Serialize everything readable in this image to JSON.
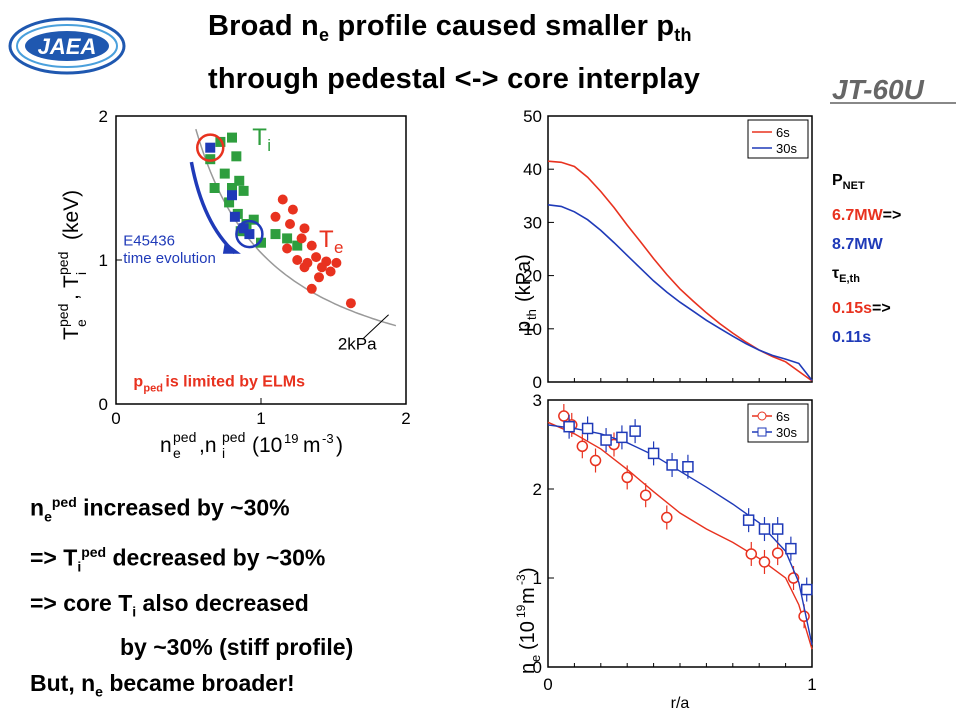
{
  "title": {
    "line1_a": "Broad n",
    "line1_sub1": "e",
    "line1_b": " profile caused smaller p",
    "line1_sub2": "th",
    "line2": "through pedestal <-> core interplay"
  },
  "logo": {
    "text": "JAEA"
  },
  "device": "JT-60U",
  "side_panel": {
    "pnet_label": "P",
    "pnet_sub": "NET",
    "pnet_from": "6.7MW",
    "arrow": "=>",
    "pnet_to": "8.7MW",
    "tau_label": "τ",
    "tau_sub": "E,th",
    "tau_from": "0.15s",
    "tau_to": "0.11s"
  },
  "bullets": {
    "l1_a": "n",
    "l1_sub": "e",
    "l1_sup": "ped",
    "l1_b": " increased by ~30%",
    "l2_a": "=> T",
    "l2_sub": "i",
    "l2_sup": "ped",
    "l2_b": " decreased by ~30%",
    "l3_a": "=> core T",
    "l3_sub": "i",
    "l3_b": " also decreased",
    "l4": "by ~30% (stiff profile)",
    "l5_a": "But, n",
    "l5_sub": "e",
    "l5_b": " became broader!"
  },
  "colors": {
    "red": "#e8321f",
    "blue": "#1f3ab8",
    "green": "#2e9e3e",
    "gray": "#888888"
  },
  "chart_data": [
    {
      "type": "scatter",
      "xlabel": "n_e^ped, n_i^ped (10^19 m^-3)",
      "ylabel": "T_e^ped, T_i^ped (keV)",
      "xlim": [
        0,
        2
      ],
      "ylim": [
        0,
        2
      ],
      "x_ticks": [
        "0",
        "1",
        "2"
      ],
      "y_ticks": [
        "0",
        "1",
        "2"
      ],
      "labels": {
        "ti": "T",
        "ti_sub": "i",
        "te": "T",
        "te_sub": "e",
        "annot_line1": "E45436",
        "annot_line2": "time evolution",
        "isobar": "2kPa",
        "limit_a": "p",
        "limit_sub": "ped",
        "limit_b": " is limited by ELMs"
      },
      "series": [
        {
          "name": "Ti",
          "color": "#2e9e3e",
          "points": [
            [
              0.72,
              1.82
            ],
            [
              0.8,
              1.85
            ],
            [
              0.83,
              1.72
            ],
            [
              0.65,
              1.7
            ],
            [
              0.75,
              1.6
            ],
            [
              0.85,
              1.55
            ],
            [
              0.68,
              1.5
            ],
            [
              0.8,
              1.5
            ],
            [
              0.88,
              1.48
            ],
            [
              0.78,
              1.4
            ],
            [
              0.84,
              1.32
            ],
            [
              0.9,
              1.25
            ],
            [
              1.0,
              1.12
            ],
            [
              0.95,
              1.28
            ],
            [
              1.1,
              1.18
            ],
            [
              1.18,
              1.15
            ],
            [
              1.25,
              1.1
            ],
            [
              0.86,
              1.2
            ]
          ]
        },
        {
          "name": "Ti-blue",
          "color": "#1f3ab8",
          "points": [
            [
              0.65,
              1.78
            ],
            [
              0.8,
              1.45
            ],
            [
              0.82,
              1.3
            ],
            [
              0.88,
              1.22
            ],
            [
              0.92,
              1.18
            ]
          ]
        },
        {
          "name": "Te",
          "color": "#e8321f",
          "points": [
            [
              1.15,
              1.42
            ],
            [
              1.22,
              1.35
            ],
            [
              1.1,
              1.3
            ],
            [
              1.2,
              1.25
            ],
            [
              1.3,
              1.22
            ],
            [
              1.28,
              1.15
            ],
            [
              1.35,
              1.1
            ],
            [
              1.18,
              1.08
            ],
            [
              1.25,
              1.0
            ],
            [
              1.32,
              0.98
            ],
            [
              1.38,
              1.02
            ],
            [
              1.42,
              0.95
            ],
            [
              1.3,
              0.95
            ],
            [
              1.45,
              0.99
            ],
            [
              1.48,
              0.92
            ],
            [
              1.4,
              0.88
            ],
            [
              1.52,
              0.98
            ],
            [
              1.62,
              0.7
            ],
            [
              1.35,
              0.8
            ]
          ]
        }
      ],
      "isobar_kpa": 2,
      "highlight_circles": [
        {
          "x": 0.65,
          "y": 1.78,
          "color": "#e8321f"
        },
        {
          "x": 0.92,
          "y": 1.18,
          "color": "#1f3ab8"
        }
      ]
    },
    {
      "type": "line",
      "ylabel": "p_th (kPa)",
      "xlim": [
        0,
        1
      ],
      "ylim": [
        0,
        50
      ],
      "y_ticks": [
        "0",
        "10",
        "20",
        "30",
        "40",
        "50"
      ],
      "series": [
        {
          "name": "6s",
          "color": "#e8321f",
          "x": [
            0,
            0.05,
            0.1,
            0.15,
            0.2,
            0.25,
            0.3,
            0.35,
            0.4,
            0.45,
            0.5,
            0.55,
            0.6,
            0.65,
            0.7,
            0.75,
            0.8,
            0.85,
            0.9,
            0.95,
            1.0
          ],
          "values": [
            41.5,
            41.3,
            40.5,
            38.5,
            35.8,
            32.8,
            29.5,
            26.4,
            23.2,
            20.2,
            17.5,
            15.2,
            13.0,
            11.0,
            9.2,
            7.5,
            6.0,
            4.8,
            3.8,
            2.0,
            0.2
          ]
        },
        {
          "name": "30s",
          "color": "#1f3ab8",
          "x": [
            0,
            0.05,
            0.1,
            0.15,
            0.2,
            0.25,
            0.3,
            0.35,
            0.4,
            0.45,
            0.5,
            0.55,
            0.6,
            0.65,
            0.7,
            0.75,
            0.8,
            0.85,
            0.9,
            0.95,
            1.0
          ],
          "values": [
            33.3,
            33.0,
            32.0,
            30.5,
            28.5,
            26.2,
            23.8,
            21.4,
            19.0,
            16.9,
            15.0,
            13.3,
            11.6,
            10.1,
            8.6,
            7.2,
            6.0,
            5.0,
            4.3,
            3.5,
            0.3
          ]
        }
      ]
    },
    {
      "type": "line",
      "xlabel": "r/a",
      "ylabel": "n_e (10^19 m^-3)",
      "xlim": [
        0,
        1
      ],
      "ylim": [
        0,
        3
      ],
      "x_ticks": [
        "0",
        "1"
      ],
      "y_ticks": [
        "0",
        "1",
        "2",
        "3"
      ],
      "series": [
        {
          "name": "6s",
          "color": "#e8321f",
          "points": [
            [
              0.06,
              2.82
            ],
            [
              0.09,
              2.72
            ],
            [
              0.13,
              2.48
            ],
            [
              0.18,
              2.32
            ],
            [
              0.25,
              2.5
            ],
            [
              0.3,
              2.13
            ],
            [
              0.37,
              1.93
            ],
            [
              0.45,
              1.68
            ],
            [
              0.77,
              1.27
            ],
            [
              0.82,
              1.18
            ],
            [
              0.87,
              1.28
            ],
            [
              0.93,
              1.0
            ],
            [
              0.97,
              0.57
            ]
          ],
          "fit_x": [
            0,
            0.1,
            0.2,
            0.3,
            0.4,
            0.5,
            0.6,
            0.7,
            0.8,
            0.9,
            0.95,
            1.0
          ],
          "fit_y": [
            2.75,
            2.62,
            2.45,
            2.22,
            1.97,
            1.73,
            1.55,
            1.4,
            1.22,
            1.0,
            0.7,
            0.2
          ]
        },
        {
          "name": "30s",
          "color": "#1f3ab8",
          "points": [
            [
              0.08,
              2.7
            ],
            [
              0.15,
              2.68
            ],
            [
              0.22,
              2.55
            ],
            [
              0.28,
              2.58
            ],
            [
              0.33,
              2.65
            ],
            [
              0.4,
              2.4
            ],
            [
              0.47,
              2.27
            ],
            [
              0.53,
              2.25
            ],
            [
              0.76,
              1.65
            ],
            [
              0.82,
              1.55
            ],
            [
              0.87,
              1.55
            ],
            [
              0.92,
              1.33
            ],
            [
              0.98,
              0.87
            ]
          ],
          "fit_x": [
            0,
            0.1,
            0.2,
            0.3,
            0.4,
            0.5,
            0.6,
            0.7,
            0.8,
            0.9,
            0.95,
            1.0
          ],
          "fit_y": [
            2.72,
            2.68,
            2.62,
            2.52,
            2.38,
            2.2,
            2.02,
            1.83,
            1.62,
            1.3,
            0.95,
            0.25
          ]
        }
      ]
    }
  ]
}
